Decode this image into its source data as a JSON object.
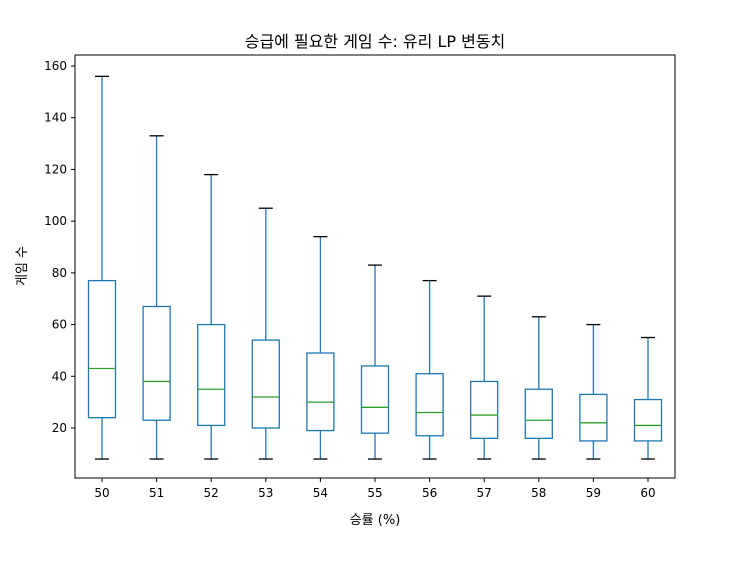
{
  "chart_data": {
    "type": "box",
    "title": "승급에 필요한 게임 수: 유리 LP 변동치",
    "xlabel": "승률 (%)",
    "ylabel": "게임 수",
    "categories": [
      "50",
      "51",
      "52",
      "53",
      "54",
      "55",
      "56",
      "57",
      "58",
      "59",
      "60"
    ],
    "boxes": [
      {
        "whislo": 8,
        "q1": 24,
        "med": 43,
        "q3": 77,
        "whishi": 156
      },
      {
        "whislo": 8,
        "q1": 23,
        "med": 38,
        "q3": 67,
        "whishi": 133
      },
      {
        "whislo": 8,
        "q1": 21,
        "med": 35,
        "q3": 60,
        "whishi": 118
      },
      {
        "whislo": 8,
        "q1": 20,
        "med": 32,
        "q3": 54,
        "whishi": 105
      },
      {
        "whislo": 8,
        "q1": 19,
        "med": 30,
        "q3": 49,
        "whishi": 94
      },
      {
        "whislo": 8,
        "q1": 18,
        "med": 28,
        "q3": 44,
        "whishi": 83
      },
      {
        "whislo": 8,
        "q1": 17,
        "med": 26,
        "q3": 41,
        "whishi": 77
      },
      {
        "whislo": 8,
        "q1": 16,
        "med": 25,
        "q3": 38,
        "whishi": 71
      },
      {
        "whislo": 8,
        "q1": 16,
        "med": 23,
        "q3": 35,
        "whishi": 63
      },
      {
        "whislo": 8,
        "q1": 15,
        "med": 22,
        "q3": 33,
        "whishi": 60
      },
      {
        "whislo": 8,
        "q1": 15,
        "med": 21,
        "q3": 31,
        "whishi": 55
      }
    ],
    "yticks": [
      20,
      40,
      60,
      80,
      100,
      120,
      140,
      160
    ],
    "ylim": [
      2,
      165
    ],
    "grid": false,
    "colors": {
      "box": "#1f77b4",
      "median": "#2ca02c",
      "cap": "#000000"
    }
  }
}
